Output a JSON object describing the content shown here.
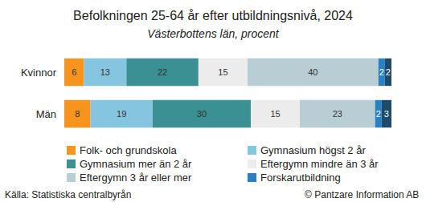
{
  "chart_data": {
    "type": "bar",
    "title": "Befolkningen 25-64 år efter utbildningsnivå, 2024",
    "subtitle": "Västerbottens län, procent",
    "orientation": "horizontal",
    "stacked": true,
    "data_labels": true,
    "tick_labels": "y",
    "grid": false,
    "legend": "bottom",
    "xlim": [
      0,
      100
    ],
    "categories": [
      "Kvinnor",
      "Män"
    ],
    "series": [
      {
        "name": "Folk- och grundskola",
        "color": "#f7941d",
        "values": [
          6,
          8
        ]
      },
      {
        "name": "Gymnasium högst 2 år",
        "color": "#86c5e0",
        "values": [
          13,
          19
        ]
      },
      {
        "name": "Gymnasium mer än 2 år",
        "color": "#3a9092",
        "values": [
          22,
          30
        ]
      },
      {
        "name": "Eftergymn mindre än 3 år",
        "color": "#ececec",
        "values": [
          15,
          15
        ]
      },
      {
        "name": "Eftergymn 3 år eller mer",
        "color": "#b9cdd5",
        "values": [
          40,
          23
        ]
      },
      {
        "name": "Forskarutbildning",
        "color": "#2a80c2",
        "values": [
          2,
          2
        ]
      },
      {
        "name": null,
        "color": "#1d4c6b",
        "values": [
          2,
          3
        ]
      }
    ],
    "source": "Källa: Statistiska centralbyrån",
    "credit": "© Pantzare Information AB"
  }
}
